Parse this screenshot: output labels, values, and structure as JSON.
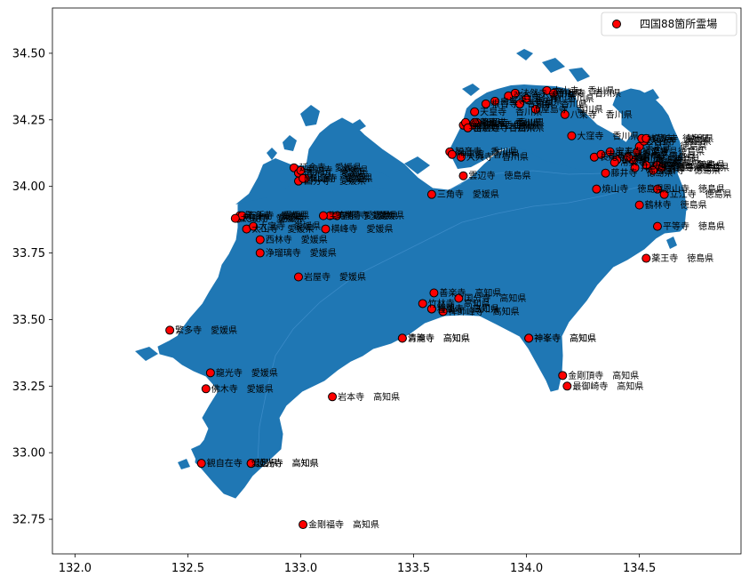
{
  "chart_data": {
    "type": "scatter",
    "title": "",
    "xlabel": "",
    "ylabel": "",
    "xlim": [
      131.9,
      134.95
    ],
    "ylim": [
      32.62,
      34.67
    ],
    "xticks": [
      "132.0",
      "132.5",
      "133.0",
      "133.5",
      "134.0",
      "134.5"
    ],
    "yticks": [
      "32.75",
      "33.00",
      "33.25",
      "33.50",
      "33.75",
      "34.00",
      "34.25",
      "34.50"
    ],
    "land_color": "#1f77b4",
    "marker_color": "#ff0000",
    "legend": {
      "position": "top-right",
      "label": "四国88箇所霊場"
    },
    "series": [
      {
        "name": "四国88箇所霊場",
        "points": [
          {
            "x": 133.01,
            "y": 32.73,
            "label": "金剛福寺　高知県"
          },
          {
            "x": 132.56,
            "y": 32.96,
            "label": "観自在寺　愛媛県"
          },
          {
            "x": 132.78,
            "y": 32.96,
            "label": "延光寺　高知県"
          },
          {
            "x": 132.58,
            "y": 33.24,
            "label": "佛木寺　愛媛県"
          },
          {
            "x": 132.6,
            "y": 33.3,
            "label": "龍光寺　愛媛県"
          },
          {
            "x": 133.14,
            "y": 33.21,
            "label": "岩本寺　高知県"
          },
          {
            "x": 132.42,
            "y": 33.46,
            "label": "繁多寺　愛媛県"
          },
          {
            "x": 132.99,
            "y": 33.66,
            "label": "岩屋寺　愛媛県"
          },
          {
            "x": 132.82,
            "y": 33.75,
            "label": "浄瑠璃寺　愛媛県"
          },
          {
            "x": 132.82,
            "y": 33.8,
            "label": "西林寺　愛媛県"
          },
          {
            "x": 132.76,
            "y": 33.84,
            "label": "太山寺　愛媛県"
          },
          {
            "x": 132.72,
            "y": 33.88,
            "label": "円明寺　愛媛県"
          },
          {
            "x": 133.11,
            "y": 33.84,
            "label": "横峰寺　愛媛県"
          },
          {
            "x": 133.13,
            "y": 33.89,
            "label": "前神寺　愛媛県"
          },
          {
            "x": 133.16,
            "y": 33.89,
            "label": "香園寺　愛媛県"
          },
          {
            "x": 132.97,
            "y": 34.07,
            "label": "延命寺　愛媛県"
          },
          {
            "x": 132.99,
            "y": 34.05,
            "label": "南光坊　愛媛県"
          },
          {
            "x": 132.99,
            "y": 34.02,
            "label": "国分寺　愛媛県"
          },
          {
            "x": 133.02,
            "y": 34.03,
            "label": "仙遊寺　愛媛県"
          },
          {
            "x": 133.58,
            "y": 33.97,
            "label": "三角寺　愛媛県"
          },
          {
            "x": 133.45,
            "y": 33.43,
            "label": "清滝寺　高知県"
          },
          {
            "x": 133.59,
            "y": 33.6,
            "label": "善楽寺　高知県"
          },
          {
            "x": 133.54,
            "y": 33.56,
            "label": "竹林寺　高知県"
          },
          {
            "x": 133.58,
            "y": 33.54,
            "label": "雪蹊寺　高知県"
          },
          {
            "x": 133.7,
            "y": 33.58,
            "label": "国分寺　高知県"
          },
          {
            "x": 133.63,
            "y": 33.53,
            "label": "禅師峰寺　高知県"
          },
          {
            "x": 134.01,
            "y": 33.43,
            "label": "神峯寺　高知県"
          },
          {
            "x": 134.16,
            "y": 33.29,
            "label": "金剛頂寺　高知県"
          },
          {
            "x": 134.18,
            "y": 33.25,
            "label": "最御崎寺　高知県"
          },
          {
            "x": 134.53,
            "y": 33.73,
            "label": "薬王寺　徳島県"
          },
          {
            "x": 134.58,
            "y": 33.85,
            "label": "平等寺　徳島県"
          },
          {
            "x": 134.5,
            "y": 33.93,
            "label": "鶴林寺　徳島県"
          },
          {
            "x": 134.61,
            "y": 33.97,
            "label": "立江寺　徳島県"
          },
          {
            "x": 134.58,
            "y": 33.99,
            "label": "恩山寺　徳島県"
          },
          {
            "x": 134.31,
            "y": 33.99,
            "label": "焼山寺　徳島県"
          },
          {
            "x": 134.35,
            "y": 34.05,
            "label": "藤井寺　徳島県"
          },
          {
            "x": 133.72,
            "y": 34.04,
            "label": "雲辺寺　徳島県"
          },
          {
            "x": 133.66,
            "y": 34.13,
            "label": "観音寺　香川県"
          },
          {
            "x": 133.67,
            "y": 34.12,
            "label": "神恵院　香川県"
          },
          {
            "x": 133.71,
            "y": 34.11,
            "label": "大興寺　香川県"
          },
          {
            "x": 134.2,
            "y": 34.19,
            "label": "大窪寺　香川県"
          },
          {
            "x": 134.3,
            "y": 34.11,
            "label": "長尾寺　香川県"
          },
          {
            "x": 134.33,
            "y": 34.12,
            "label": "志度寺　香川県"
          },
          {
            "x": 134.17,
            "y": 34.27,
            "label": "八栗寺　香川県"
          },
          {
            "x": 134.04,
            "y": 34.29,
            "label": "屋島寺　香川県"
          },
          {
            "x": 133.97,
            "y": 34.31,
            "label": "一宮寺　香川県"
          },
          {
            "x": 134.0,
            "y": 34.33,
            "label": "国分寺　香川県"
          },
          {
            "x": 133.86,
            "y": 34.32,
            "label": "白峯寺　香川県"
          },
          {
            "x": 133.82,
            "y": 34.31,
            "label": "根香寺　香川県"
          },
          {
            "x": 133.77,
            "y": 34.28,
            "label": "天皇寺　香川県"
          },
          {
            "x": 133.78,
            "y": 34.24,
            "label": "郷照寺　香川県"
          },
          {
            "x": 133.76,
            "y": 34.23,
            "label": "道隆寺　香川県"
          },
          {
            "x": 133.72,
            "y": 34.23,
            "label": "金倉寺　香川県"
          },
          {
            "x": 133.74,
            "y": 34.22,
            "label": "善通寺　香川県"
          },
          {
            "x": 133.77,
            "y": 34.24,
            "label": "甲山寺　香川県"
          },
          {
            "x": 133.73,
            "y": 34.24,
            "label": "曼荼羅寺　香川県"
          },
          {
            "x": 133.74,
            "y": 34.22,
            "label": "出釈迦寺　香川県"
          },
          {
            "x": 133.92,
            "y": 34.34,
            "label": "弥谷寺　香川県"
          },
          {
            "x": 134.09,
            "y": 34.36,
            "label": "本山寺　香川県"
          },
          {
            "x": 134.12,
            "y": 34.35,
            "label": "竹林寺　香川県"
          },
          {
            "x": 133.95,
            "y": 34.35,
            "label": "法然寺　香川県"
          },
          {
            "x": 134.47,
            "y": 34.1,
            "label": "霊山寺　徳島県"
          },
          {
            "x": 134.49,
            "y": 34.13,
            "label": "極楽寺　徳島県"
          },
          {
            "x": 134.5,
            "y": 34.15,
            "label": "金泉寺　徳島県"
          },
          {
            "x": 134.52,
            "y": 34.17,
            "label": "大日寺　徳島県"
          },
          {
            "x": 134.51,
            "y": 34.18,
            "label": "地蔵寺　徳島県"
          },
          {
            "x": 134.53,
            "y": 34.18,
            "label": "安楽寺　徳島県"
          },
          {
            "x": 134.57,
            "y": 34.07,
            "label": "十楽寺　徳島県"
          },
          {
            "x": 134.58,
            "y": 34.08,
            "label": "熊谷寺　徳島県"
          },
          {
            "x": 134.56,
            "y": 34.06,
            "label": "法輪寺　徳島県"
          },
          {
            "x": 134.53,
            "y": 34.08,
            "label": "切幡寺　徳島県"
          },
          {
            "x": 134.48,
            "y": 34.07,
            "label": "井戸寺　徳島県"
          },
          {
            "x": 134.45,
            "y": 34.11,
            "label": "観音寺　徳島県"
          },
          {
            "x": 134.4,
            "y": 34.1,
            "label": "国分寺　徳島県"
          },
          {
            "x": 134.39,
            "y": 34.09,
            "label": "常楽寺　徳島県"
          },
          {
            "x": 134.6,
            "y": 34.07,
            "label": "大日寺　徳島県"
          },
          {
            "x": 134.37,
            "y": 34.13,
            "label": "宝寿寺　愛媛県"
          },
          {
            "x": 132.73,
            "y": 33.89,
            "label": "繁多寺　愛媛県"
          },
          {
            "x": 132.74,
            "y": 33.89,
            "label": "石手寺　愛媛県"
          },
          {
            "x": 132.71,
            "y": 33.88,
            "label": "太山寺　愛媛県"
          },
          {
            "x": 132.79,
            "y": 33.85,
            "label": "大宝寺　愛媛県"
          },
          {
            "x": 133.0,
            "y": 34.06,
            "label": "栄福寺　愛媛県"
          },
          {
            "x": 133.01,
            "y": 34.03,
            "label": "泰山寺　愛媛県"
          },
          {
            "x": 133.1,
            "y": 33.89,
            "label": "宝寿寺　愛媛県"
          },
          {
            "x": 133.58,
            "y": 33.54,
            "label": "種間寺　高知県"
          },
          {
            "x": 134.01,
            "y": 33.43,
            "label": "神峯寺　高知県"
          },
          {
            "x": 133.45,
            "y": 33.43,
            "label": "青龍寺　高知県"
          },
          {
            "x": 132.78,
            "y": 32.96,
            "label": "延光寺　高知県"
          }
        ]
      }
    ]
  }
}
